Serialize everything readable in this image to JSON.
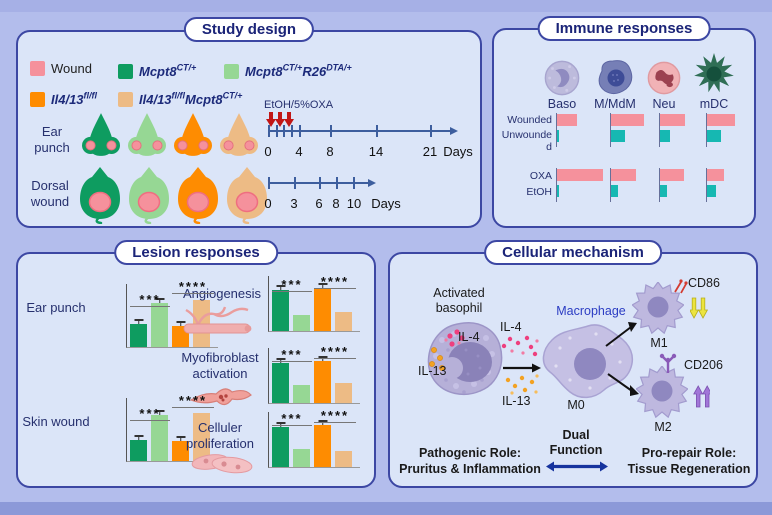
{
  "colors": {
    "wound_pink": "#f5919c",
    "teal": "#16b8b2",
    "dark_green": "#0e9c60",
    "light_green": "#96d794",
    "orange": "#fe8c01",
    "tan": "#edbb85",
    "navy": "#1b2478",
    "timeline_blue": "#3d5e9e",
    "red_arrow": "#c21616"
  },
  "study": {
    "title": "Study design",
    "legend": [
      {
        "label": "Wound"
      },
      {
        "b1": "Mcpt8",
        "s1": "CT/+"
      },
      {
        "b1": "Mcpt8",
        "s1": "CT/+",
        "b2": "R26",
        "s2": "DTA/+"
      },
      {
        "b1": "Il4/13",
        "s1": "fl/fl"
      },
      {
        "b1": "Il4/13",
        "s1": "fl/fl",
        "b2": "Mcpt8",
        "s2": "CT/+"
      }
    ],
    "row1": "Ear punch",
    "row2": "Dorsal wound",
    "treatment": "EtOH/5%OXA",
    "tl1": {
      "t0": "0",
      "t1": "4",
      "t2": "8",
      "t3": "14",
      "t4": "21",
      "unit": "Days"
    },
    "tl2": {
      "t0": "0",
      "t1": "3",
      "t2": "6",
      "t3": "8",
      "t4": "10",
      "unit": "Days"
    }
  },
  "immune": {
    "title": "Immune responses",
    "cells": [
      "Baso",
      "M/MdM",
      "Neu",
      "mDC"
    ],
    "g1r1": "Wounded",
    "g1r2": "Unwounded",
    "g2r1": "OXA",
    "g2r2": "EtOH",
    "group1": {
      "series": [
        [
          0.43,
          0.72,
          0.55,
          0.6
        ],
        [
          0.05,
          0.3,
          0.22,
          0.3
        ]
      ]
    },
    "group2": {
      "series": [
        [
          1.0,
          0.55,
          0.52,
          0.38
        ],
        [
          0.05,
          0.16,
          0.16,
          0.2
        ]
      ]
    }
  },
  "lesion": {
    "title": "Lesion responses",
    "charts": {
      "ear": {
        "label": "Ear punch",
        "values": [
          0.36,
          0.7,
          0.33,
          0.74
        ],
        "err": [
          true,
          true,
          true,
          false
        ],
        "sig1": "***",
        "sig2": "****"
      },
      "skin": {
        "label": "Skin wound",
        "values": [
          0.34,
          0.73,
          0.31,
          0.76
        ],
        "err": [
          true,
          true,
          true,
          false
        ],
        "sig1": "***",
        "sig2": "****"
      },
      "angio": {
        "label": "Angiogenesis",
        "values": [
          0.74,
          0.3,
          0.78,
          0.34
        ],
        "err": [
          true,
          false,
          true,
          false
        ],
        "sig1": "***",
        "sig2": "****"
      },
      "myo": {
        "label": "Myofibroblast activation",
        "values": [
          0.72,
          0.33,
          0.76,
          0.37
        ],
        "err": [
          true,
          false,
          true,
          false
        ],
        "sig1": "***",
        "sig2": "****"
      },
      "prolif": {
        "label": "Celluler proliferation",
        "values": [
          0.73,
          0.32,
          0.77,
          0.3
        ],
        "err": [
          true,
          false,
          true,
          false
        ],
        "sig1": "***",
        "sig2": "****"
      }
    }
  },
  "mechanism": {
    "title": "Cellular mechanism",
    "basophil1": "Activated",
    "basophil2": "basophil",
    "il4": "IL-4",
    "il13": "IL-13",
    "macrophage": "Macrophage",
    "m0": "M0",
    "m1": "M1",
    "m2": "M2",
    "cd86": "CD86",
    "cd206": "CD206",
    "dual1": "Dual",
    "dual2": "Function",
    "path1": "Pathogenic Role:",
    "path2": "Pruritus & Inflammation",
    "repair1": "Pro-repair Role:",
    "repair2": "Tissue Regeneration"
  }
}
